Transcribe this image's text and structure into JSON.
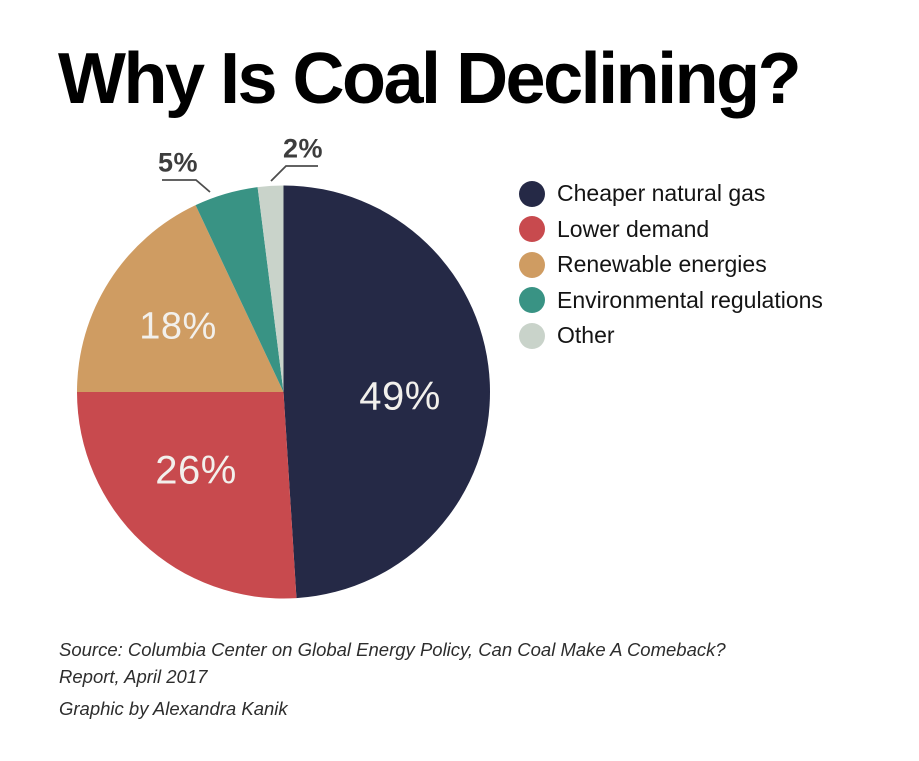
{
  "title": "Why Is Coal Declining?",
  "chart_data": {
    "type": "pie",
    "title": "Why Is Coal Declining?",
    "categories": [
      "Cheaper natural gas",
      "Lower demand",
      "Renewable energies",
      "Environmental regulations",
      "Other"
    ],
    "values": [
      49,
      26,
      18,
      5,
      2
    ],
    "value_unit": "%",
    "colors": [
      "#252946",
      "#c84a4e",
      "#cf9c62",
      "#399384",
      "#c9d3ca"
    ],
    "slice_labels": [
      "49%",
      "26%",
      "18%",
      "5%",
      "2%"
    ],
    "start_angle_deg": 0,
    "direction": "clockwise",
    "legend_position": "right",
    "legend_marker": "circle",
    "outside_labels_with_leader_lines": [
      "5%",
      "2%"
    ]
  },
  "source": {
    "line1": "Source: Columbia Center on Global Energy Policy, Can Coal Make A Comeback?",
    "line2": "Report, April 2017",
    "credit": "Graphic by Alexandra Kanik"
  },
  "style_colors": {
    "background": "#ffffff",
    "title_text": "#000000",
    "inside_label_text": "#f2f0ec",
    "outside_label_text": "#3d3d3d",
    "leader_line": "#4d4d4d",
    "legend_text": "#141414",
    "source_text": "#2d2d2d"
  }
}
